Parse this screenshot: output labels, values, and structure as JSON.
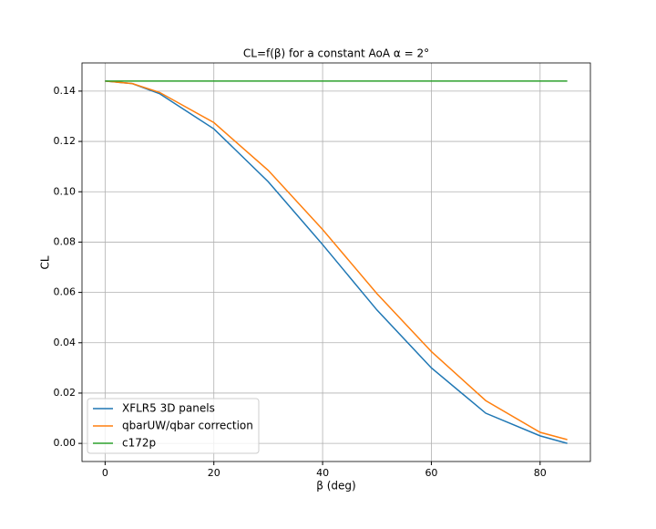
{
  "chart_data": {
    "type": "line",
    "title": "CL=f(β) for a constant AoA α = 2°",
    "x_label": "β (deg)",
    "y_label": "CL",
    "x": [
      0,
      5,
      10,
      20,
      30,
      40,
      50,
      60,
      70,
      80,
      85
    ],
    "series": [
      {
        "name": "XFLR5 3D panels",
        "color": "#1f77b4",
        "values": [
          0.144,
          0.143,
          0.139,
          0.125,
          0.104,
          0.079,
          0.053,
          0.03,
          0.012,
          0.003,
          0.0
        ]
      },
      {
        "name": "qbarUW/qbar correction",
        "color": "#ff7f0e",
        "values": [
          0.144,
          0.143,
          0.1395,
          0.1275,
          0.1085,
          0.085,
          0.0595,
          0.0365,
          0.017,
          0.0044,
          0.0015
        ]
      },
      {
        "name": "c172p",
        "color": "#2ca02c",
        "values": [
          0.144,
          0.144,
          0.144,
          0.144,
          0.144,
          0.144,
          0.144,
          0.144,
          0.144,
          0.144,
          0.144
        ]
      }
    ],
    "xlim": [
      -4.25,
      89.25
    ],
    "xticks": [
      0,
      20,
      40,
      60,
      80
    ],
    "ylim": [
      -0.0072,
      0.1512
    ],
    "yticks": [
      {
        "value": 0,
        "label": "0.00"
      },
      {
        "value": 0.02,
        "label": "0.02"
      },
      {
        "value": 0.04,
        "label": "0.04"
      },
      {
        "value": 0.06,
        "label": "0.06"
      },
      {
        "value": 0.08,
        "label": "0.08"
      },
      {
        "value": 0.1,
        "label": "0.10"
      },
      {
        "value": 0.12,
        "label": "0.12"
      },
      {
        "value": 0.14,
        "label": "0.14"
      }
    ],
    "grid": true,
    "legend": "lower left"
  }
}
